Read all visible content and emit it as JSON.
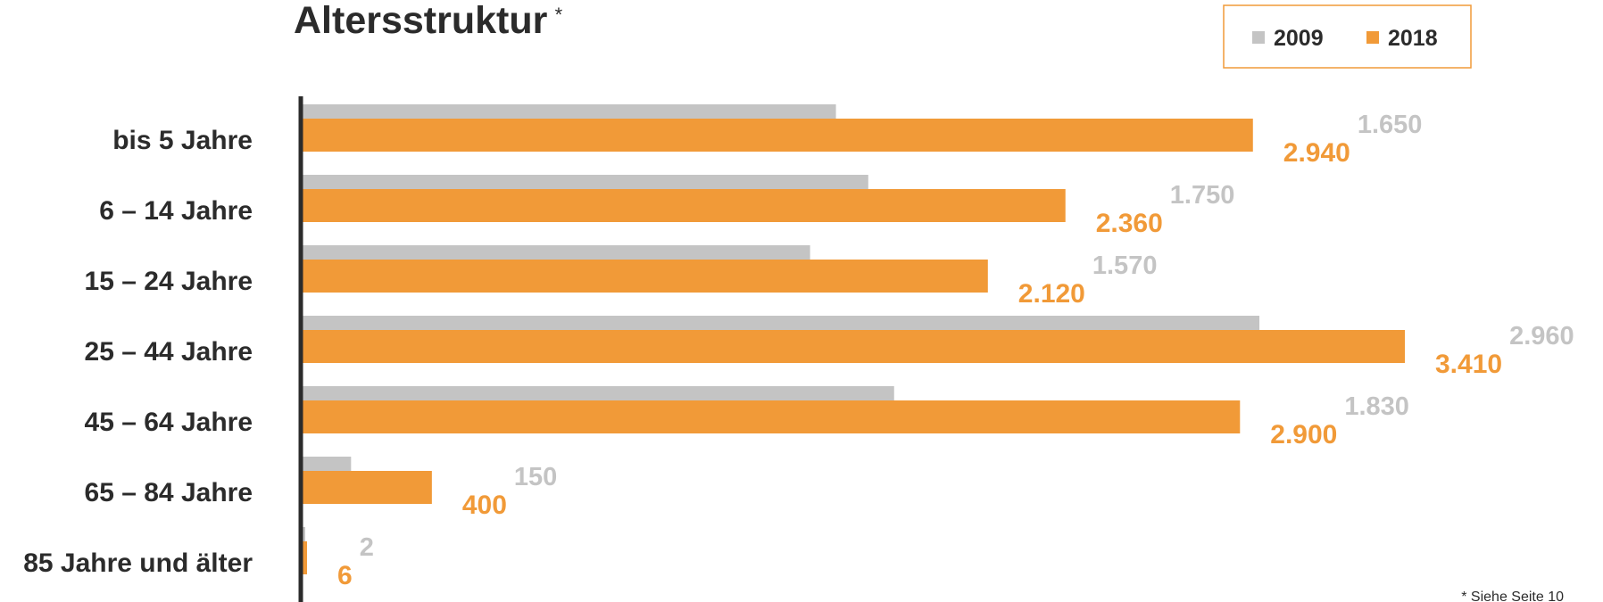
{
  "chart_data": {
    "type": "bar",
    "orientation": "horizontal",
    "title": "Altersstruktur",
    "title_mark": "*",
    "categories": [
      "bis 5 Jahre",
      "6 – 14 Jahre",
      "15 – 24 Jahre",
      "25 – 44 Jahre",
      "45 – 64 Jahre",
      "65 – 84 Jahre",
      "85 Jahre und älter"
    ],
    "series": [
      {
        "name": "2009",
        "color": "#c4c4c4",
        "values": [
          1650,
          1750,
          1570,
          2960,
          1830,
          150,
          2
        ],
        "labels": [
          "1.650",
          "1.750",
          "1.570",
          "2.960",
          "1.830",
          "150",
          "2"
        ]
      },
      {
        "name": "2018",
        "color": "#f19a38",
        "values": [
          2940,
          2360,
          2120,
          3410,
          2900,
          400,
          6
        ],
        "labels": [
          "2.940",
          "2.360",
          "2.120",
          "3.410",
          "2.900",
          "400",
          "6"
        ]
      }
    ],
    "xlim": [
      0,
      3410
    ],
    "grid": false,
    "legend_position": "top-right",
    "footnote": "* Siehe Seite 10"
  }
}
